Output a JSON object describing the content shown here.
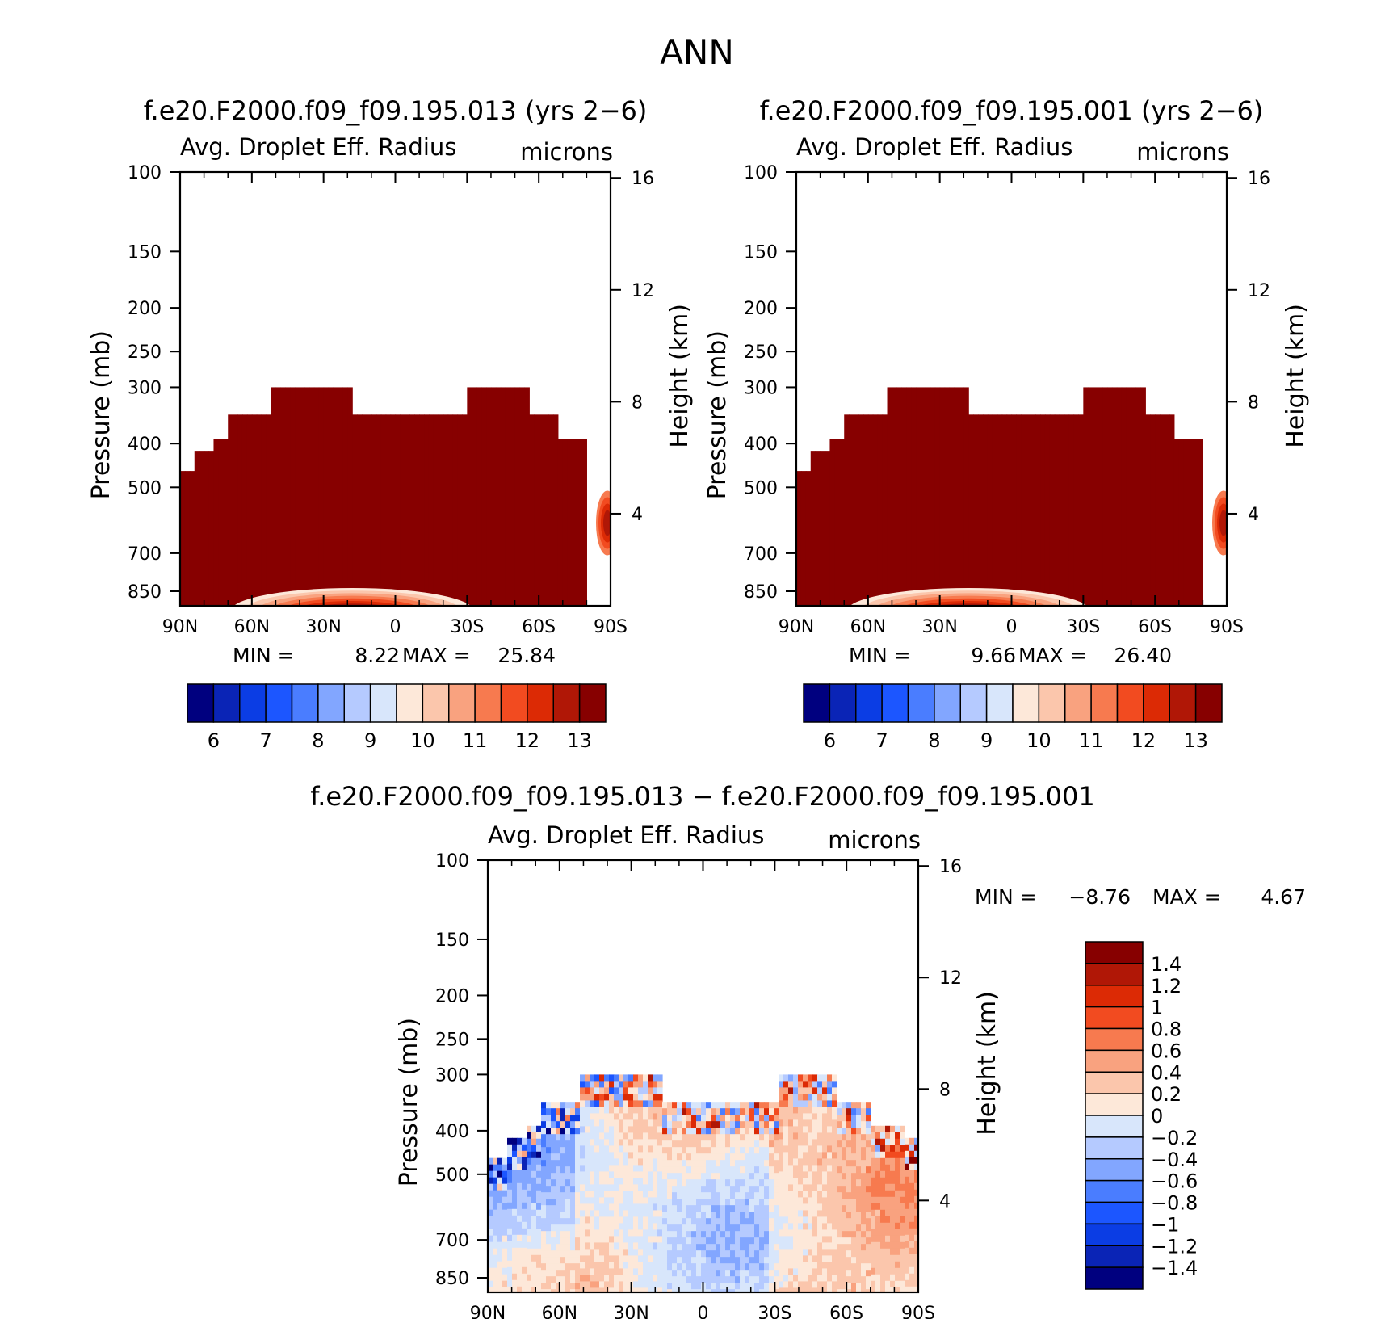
{
  "figure": {
    "title": "ANN",
    "panel1_title": "f.e20.F2000.f09_f09.195.013 (yrs 2−6)",
    "panel2_title": "f.e20.F2000.f09_f09.195.001 (yrs 2−6)",
    "panel3_title": "f.e20.F2000.f09_f09.195.013 − f.e20.F2000.f09_f09.195.001"
  },
  "chart_data": [
    {
      "type": "heatmap",
      "title": "f.e20.F2000.f09_f09.195.013 (yrs 2−6)",
      "variable": "Avg. Droplet Eff. Radius",
      "units": "microns",
      "ylabel": "Pressure (mb)",
      "y2label": "Height (km)",
      "x_ticks": [
        "90N",
        "60N",
        "30N",
        "0",
        "30S",
        "60S",
        "90S"
      ],
      "y_ticks": [
        100,
        150,
        200,
        250,
        300,
        400,
        500,
        700,
        850
      ],
      "y2_ticks": [
        16,
        12,
        8,
        4
      ],
      "y_scale": "log",
      "min_label": "MIN =",
      "min_value": "8.22",
      "max_label": "MAX =",
      "max_value": "25.84",
      "colorbar_levels": [
        "6",
        "7",
        "8",
        "9",
        "10",
        "11",
        "12",
        "13"
      ],
      "colorbar_colors": [
        "#00007f",
        "#0a24b6",
        "#0b3de4",
        "#1c56ff",
        "#4a7dff",
        "#82a6ff",
        "#b5caff",
        "#d8e6fb",
        "#fde8d9",
        "#fbc6ac",
        "#f9a27f",
        "#f77a4f",
        "#f24b20",
        "#dc2a05",
        "#b01706",
        "#870000"
      ],
      "cloud_top_mb": 300,
      "cloud_base_mb": 850
    },
    {
      "type": "heatmap",
      "title": "f.e20.F2000.f09_f09.195.001 (yrs 2−6)",
      "variable": "Avg. Droplet Eff. Radius",
      "units": "microns",
      "ylabel": "Pressure (mb)",
      "y2label": "Height (km)",
      "x_ticks": [
        "90N",
        "60N",
        "30N",
        "0",
        "30S",
        "60S",
        "90S"
      ],
      "y_ticks": [
        100,
        150,
        200,
        250,
        300,
        400,
        500,
        700,
        850
      ],
      "y2_ticks": [
        16,
        12,
        8,
        4
      ],
      "y_scale": "log",
      "min_label": "MIN =",
      "min_value": "9.66",
      "max_label": "MAX =",
      "max_value": "26.40",
      "colorbar_levels": [
        "6",
        "7",
        "8",
        "9",
        "10",
        "11",
        "12",
        "13"
      ],
      "colorbar_colors": [
        "#00007f",
        "#0a24b6",
        "#0b3de4",
        "#1c56ff",
        "#4a7dff",
        "#82a6ff",
        "#b5caff",
        "#d8e6fb",
        "#fde8d9",
        "#fbc6ac",
        "#f9a27f",
        "#f77a4f",
        "#f24b20",
        "#dc2a05",
        "#b01706",
        "#870000"
      ],
      "cloud_top_mb": 300,
      "cloud_base_mb": 850
    },
    {
      "type": "heatmap",
      "title": "f.e20.F2000.f09_f09.195.013 − f.e20.F2000.f09_f09.195.001",
      "variable": "Avg. Droplet Eff. Radius",
      "units": "microns",
      "ylabel": "Pressure (mb)",
      "y2label": "Height (km)",
      "x_ticks": [
        "90N",
        "60N",
        "30N",
        "0",
        "30S",
        "60S",
        "90S"
      ],
      "y_ticks": [
        100,
        150,
        200,
        250,
        300,
        400,
        500,
        700,
        850
      ],
      "y2_ticks": [
        16,
        12,
        8,
        4
      ],
      "y_scale": "log",
      "min_label": "MIN =",
      "min_value": "−8.76",
      "max_label": "MAX =",
      "max_value": "4.67",
      "colorbar_levels": [
        "1.4",
        "1.2",
        "1",
        "0.8",
        "0.6",
        "0.4",
        "0.2",
        "0",
        "−0.2",
        "−0.4",
        "−0.6",
        "−0.8",
        "−1",
        "−1.2",
        "−1.4"
      ],
      "colorbar_colors": [
        "#870000",
        "#b01706",
        "#dc2a05",
        "#f24b20",
        "#f77a4f",
        "#f9a27f",
        "#fbc6ac",
        "#fde8d9",
        "#d8e6fb",
        "#b5caff",
        "#82a6ff",
        "#4a7dff",
        "#1c56ff",
        "#0b3de4",
        "#0a24b6",
        "#00007f"
      ]
    }
  ]
}
